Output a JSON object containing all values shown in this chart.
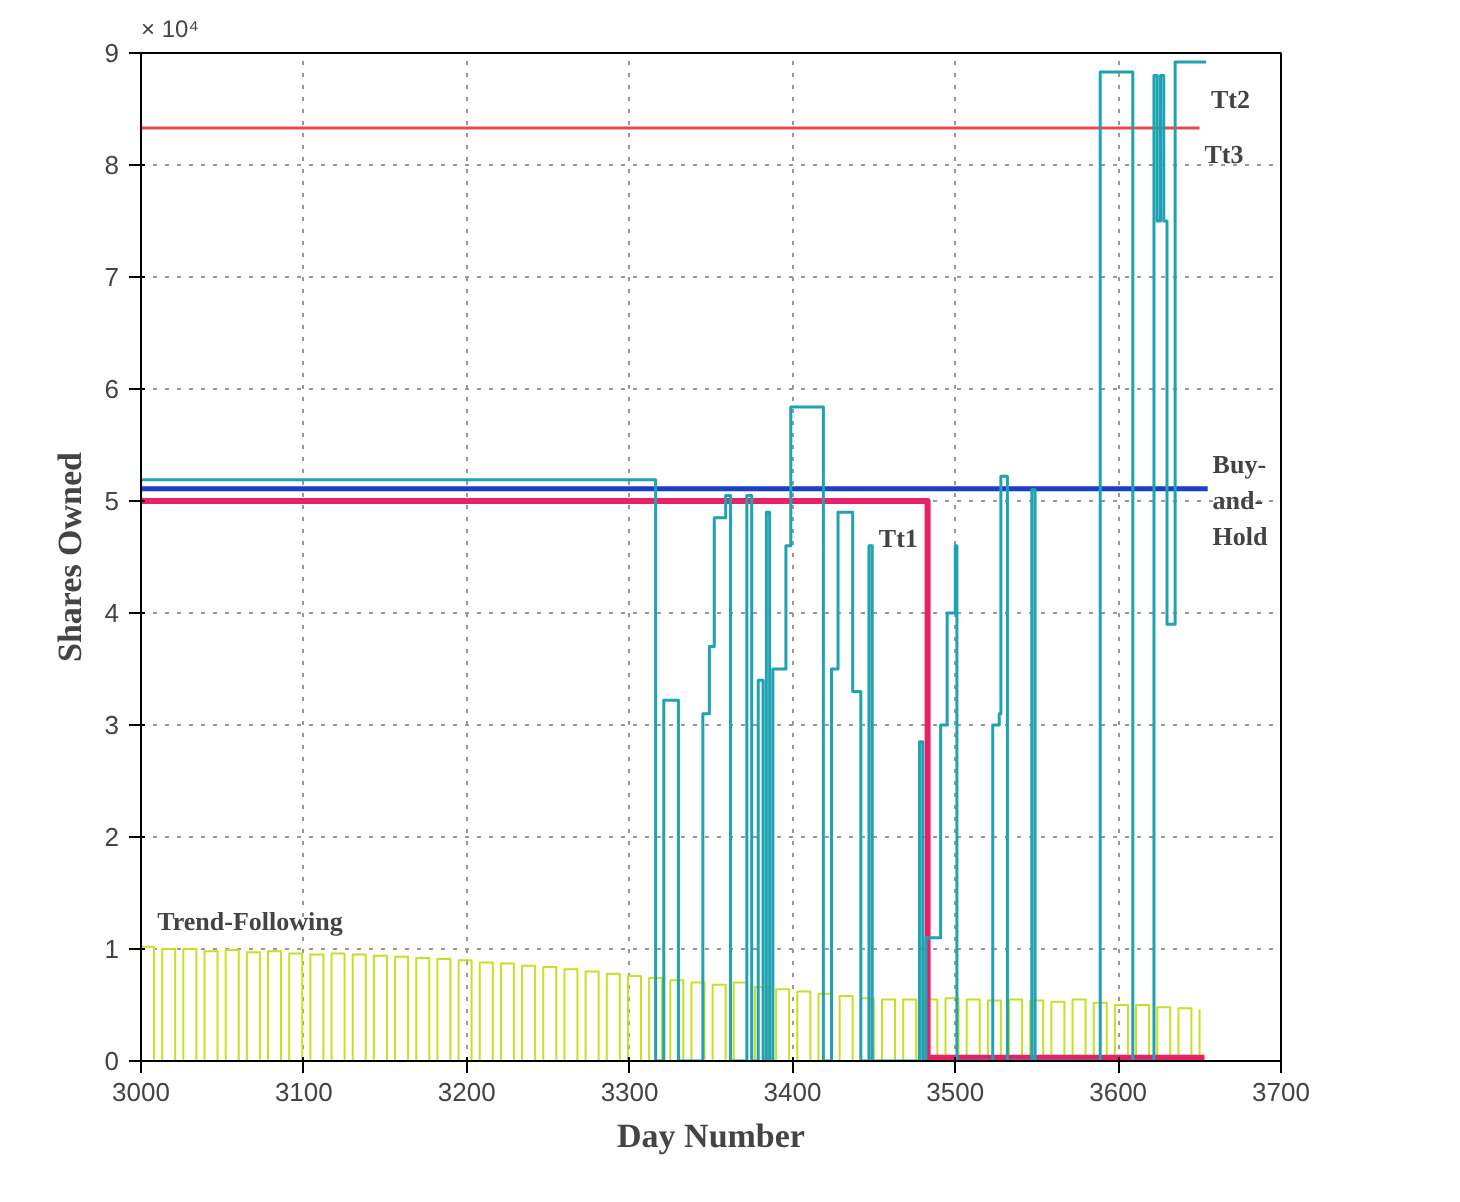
{
  "chart_data": {
    "type": "step",
    "xlabel": "Day Number",
    "ylabel": "Shares Owned",
    "annotations": [
      "× 10⁴"
    ],
    "xlim": [
      3000,
      3700
    ],
    "xticks": [
      3000,
      3100,
      3200,
      3300,
      3400,
      3500,
      3600,
      3700
    ],
    "ylim": [
      0,
      9
    ],
    "yticks": [
      0,
      1,
      2,
      3,
      4,
      5,
      6,
      7,
      8,
      9
    ],
    "grid": true,
    "line_style": "solid",
    "series": [
      {
        "name": "Trend-Following",
        "color": "#c8e020",
        "x": [
          3000,
          3008,
          3013,
          3021,
          3026,
          3034,
          3039,
          3047,
          3052,
          3060,
          3065,
          3073,
          3078,
          3086,
          3091,
          3099,
          3104,
          3112,
          3117,
          3125,
          3130,
          3138,
          3143,
          3151,
          3156,
          3164,
          3169,
          3177,
          3182,
          3190,
          3195,
          3203,
          3208,
          3216,
          3221,
          3229,
          3234,
          3242,
          3247,
          3255,
          3260,
          3268,
          3273,
          3281,
          3286,
          3294,
          3299,
          3307,
          3312,
          3320,
          3325,
          3333,
          3338,
          3346,
          3351,
          3359,
          3364,
          3372,
          3377,
          3385,
          3390,
          3398,
          3403,
          3411,
          3416,
          3424,
          3429,
          3437,
          3442,
          3450,
          3455,
          3463,
          3468,
          3476,
          3481,
          3489,
          3494,
          3502,
          3507,
          3515,
          3520,
          3528,
          3533,
          3541,
          3546,
          3554,
          3559,
          3567,
          3572,
          3580,
          3585,
          3593,
          3598,
          3606,
          3611,
          3619,
          3624,
          3632,
          3637,
          3645,
          3650
        ],
        "values": [
          1.02,
          0,
          1.0,
          0,
          1.0,
          0,
          0.98,
          0,
          0.99,
          0,
          0.97,
          0,
          0.98,
          0,
          0.96,
          0,
          0.95,
          0,
          0.96,
          0,
          0.95,
          0,
          0.94,
          0,
          0.93,
          0,
          0.92,
          0,
          0.91,
          0,
          0.9,
          0,
          0.88,
          0,
          0.87,
          0,
          0.85,
          0,
          0.84,
          0,
          0.82,
          0,
          0.8,
          0,
          0.78,
          0,
          0.76,
          0,
          0.74,
          0,
          0.72,
          0,
          0.7,
          0,
          0.68,
          0,
          0.7,
          0,
          0.66,
          0,
          0.64,
          0,
          0.62,
          0,
          0.6,
          0,
          0.58,
          0,
          0.56,
          0,
          0.55,
          0,
          0.55,
          0,
          0.55,
          0,
          0.56,
          0,
          0.55,
          0,
          0.54,
          0,
          0.55,
          0,
          0.54,
          0,
          0.53,
          0,
          0.55,
          0,
          0.52,
          0,
          0.5,
          0,
          0.5,
          0,
          0.48,
          0,
          0.47,
          0,
          0.46
        ]
      },
      {
        "name": "Tt3",
        "color": "#f04848",
        "x": [
          3000,
          3650
        ],
        "values": [
          8.33,
          8.33
        ]
      },
      {
        "name": "Buy-\nand-\nHold",
        "color": "#1a3fc8",
        "x": [
          3000,
          3655
        ],
        "values": [
          5.11,
          5.11
        ]
      },
      {
        "name": "Tt1",
        "color": "#e8206a",
        "x": [
          3000,
          3483,
          3653
        ],
        "values": [
          5.0,
          0.03,
          0.03
        ]
      },
      {
        "name": "Tt2",
        "color": "#1fa3b3",
        "x": [
          3000,
          3316,
          3321,
          3330,
          3345,
          3349,
          3352,
          3359,
          3362,
          3372,
          3375,
          3379,
          3382,
          3384,
          3386,
          3388,
          3396,
          3399,
          3419,
          3424,
          3428,
          3437,
          3442,
          3447,
          3449,
          3478,
          3480,
          3482,
          3491,
          3495,
          3500,
          3501,
          3523,
          3527,
          3528,
          3532,
          3547,
          3549,
          3589,
          3609,
          3622,
          3624,
          3626,
          3628,
          3630,
          3635,
          3654
        ],
        "values": [
          5.19,
          0,
          3.22,
          0,
          3.1,
          3.7,
          4.85,
          5.05,
          0,
          5.05,
          0,
          3.4,
          0,
          4.9,
          0,
          3.5,
          4.6,
          5.84,
          0,
          3.5,
          4.9,
          3.3,
          0,
          4.6,
          0,
          2.85,
          0,
          1.1,
          3.0,
          4.0,
          4.6,
          0,
          3.0,
          3.1,
          5.22,
          0,
          5.1,
          0,
          8.83,
          0,
          8.8,
          7.5,
          8.8,
          7.5,
          3.9,
          8.92,
          8.92
        ]
      }
    ]
  }
}
